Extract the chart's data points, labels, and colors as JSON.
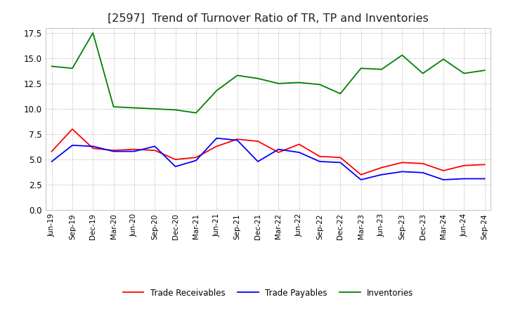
{
  "title": "[2597]  Trend of Turnover Ratio of TR, TP and Inventories",
  "x_labels": [
    "Jun-19",
    "Sep-19",
    "Dec-19",
    "Mar-20",
    "Jun-20",
    "Sep-20",
    "Dec-20",
    "Mar-21",
    "Jun-21",
    "Sep-21",
    "Dec-21",
    "Mar-22",
    "Jun-22",
    "Sep-22",
    "Dec-22",
    "Mar-23",
    "Jun-23",
    "Sep-23",
    "Dec-23",
    "Mar-24",
    "Jun-24",
    "Sep-24"
  ],
  "trade_receivables": [
    5.8,
    8.0,
    6.1,
    5.9,
    6.0,
    5.9,
    5.0,
    5.2,
    6.3,
    7.0,
    6.8,
    5.7,
    6.5,
    5.3,
    5.2,
    3.5,
    4.2,
    4.7,
    4.6,
    3.9,
    4.4,
    4.5
  ],
  "trade_payables": [
    4.8,
    6.4,
    6.3,
    5.8,
    5.8,
    6.3,
    4.3,
    4.9,
    7.1,
    6.9,
    4.8,
    6.0,
    5.7,
    4.8,
    4.7,
    3.0,
    3.5,
    3.8,
    3.7,
    3.0,
    3.1,
    3.1
  ],
  "inventories": [
    14.2,
    14.0,
    17.5,
    10.2,
    10.1,
    10.0,
    9.9,
    9.6,
    11.8,
    13.3,
    13.0,
    12.5,
    12.6,
    12.4,
    11.5,
    14.0,
    13.9,
    15.3,
    13.5,
    14.9,
    13.5,
    13.8
  ],
  "tr_color": "#ff0000",
  "tp_color": "#0000ff",
  "inv_color": "#008000",
  "ylim": [
    0,
    18.0
  ],
  "yticks": [
    0.0,
    2.5,
    5.0,
    7.5,
    10.0,
    12.5,
    15.0,
    17.5
  ],
  "background_color": "#ffffff",
  "grid_color": "#aaaaaa",
  "title_fontsize": 11.5
}
